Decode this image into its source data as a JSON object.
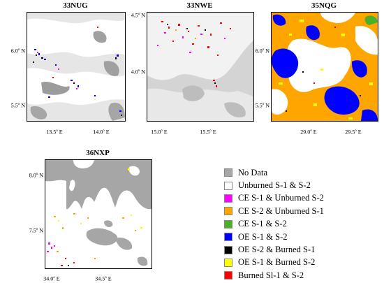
{
  "panels": [
    {
      "title": "33NUG",
      "lat_labels": [
        {
          "value": "6.0",
          "unit": "N"
        },
        {
          "value": "5.5",
          "unit": "N"
        }
      ],
      "lon_labels": [
        {
          "value": "13.5",
          "unit": "E"
        },
        {
          "value": "14.0",
          "unit": "E"
        }
      ]
    },
    {
      "title": "33NWE",
      "lat_labels": [
        {
          "value": "4.5",
          "unit": "N"
        },
        {
          "value": "4.0",
          "unit": "N"
        }
      ],
      "lon_labels": [
        {
          "value": "15.0",
          "unit": "E"
        },
        {
          "value": "15.5",
          "unit": "E"
        }
      ]
    },
    {
      "title": "35NQG",
      "lat_labels": [
        {
          "value": "6.0",
          "unit": "N"
        },
        {
          "value": "5.5",
          "unit": "N"
        }
      ],
      "lon_labels": [
        {
          "value": "29.0",
          "unit": "E"
        },
        {
          "value": "29.5",
          "unit": "E"
        }
      ]
    },
    {
      "title": "36NXP",
      "lat_labels": [
        {
          "value": "8.0",
          "unit": "N"
        },
        {
          "value": "7.5",
          "unit": "N"
        }
      ],
      "lon_labels": [
        {
          "value": "34.0",
          "unit": "E"
        },
        {
          "value": "34.5",
          "unit": "E"
        }
      ]
    }
  ],
  "legend": [
    {
      "label": "No Data",
      "color": "#a6a6a6"
    },
    {
      "label": "Unburned S-1 & S-2",
      "color": "#ffffff"
    },
    {
      "label": "CE S-1 & Unburned S-2",
      "color": "#ff00ff"
    },
    {
      "label": "CE S-2 & Unburned S-1",
      "color": "#ffa500"
    },
    {
      "label": "CE S-1 & S-2",
      "color": "#4caf2a"
    },
    {
      "label": "OE S-1 & S-2",
      "color": "#0000ff"
    },
    {
      "label": "OE S-2 & Burned S-1",
      "color": "#000000"
    },
    {
      "label": "OE S-1 & Burned S-2",
      "color": "#ffff00"
    },
    {
      "label": "Burned Sl-1 & S-2",
      "color": "#ff0000"
    }
  ]
}
